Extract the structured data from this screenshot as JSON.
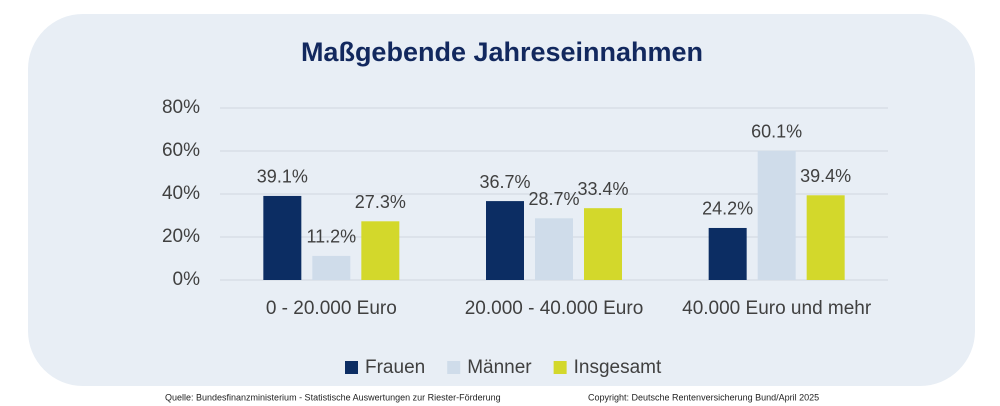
{
  "chart_data": {
    "type": "bar",
    "title": "Maßgebende Jahreseinnahmen",
    "categories": [
      "0 - 20.000 Euro",
      "20.000 - 40.000 Euro",
      "40.000 Euro und mehr"
    ],
    "series": [
      {
        "name": "Frauen",
        "color": "#0c2d63",
        "values": [
          39.1,
          36.7,
          24.2
        ],
        "value_labels": [
          "39.1%",
          "36.7%",
          "24.2%"
        ]
      },
      {
        "name": "Männer",
        "color": "#cfdcea",
        "values": [
          11.2,
          28.7,
          60.1
        ],
        "value_labels": [
          "11.2%",
          "28.7%",
          "60.1%"
        ]
      },
      {
        "name": "Insgesamt",
        "color": "#d3d82b",
        "values": [
          27.3,
          33.4,
          39.4
        ],
        "value_labels": [
          "27.3%",
          "33.4%",
          "39.4%"
        ]
      }
    ],
    "ylim": [
      0,
      80
    ],
    "yticks": [
      {
        "value": 0,
        "label": "0%"
      },
      {
        "value": 20,
        "label": "20%"
      },
      {
        "value": 40,
        "label": "40%"
      },
      {
        "value": 60,
        "label": "60%"
      },
      {
        "value": 80,
        "label": "80%"
      }
    ],
    "grid": true,
    "legend": "bottom",
    "source": "Quelle: Bundesfinanzministerium - Statistische Auswertungen zur Riester-Förderung",
    "copyright": "Copyright: Deutsche Rentenversicherung Bund/April 2025"
  }
}
